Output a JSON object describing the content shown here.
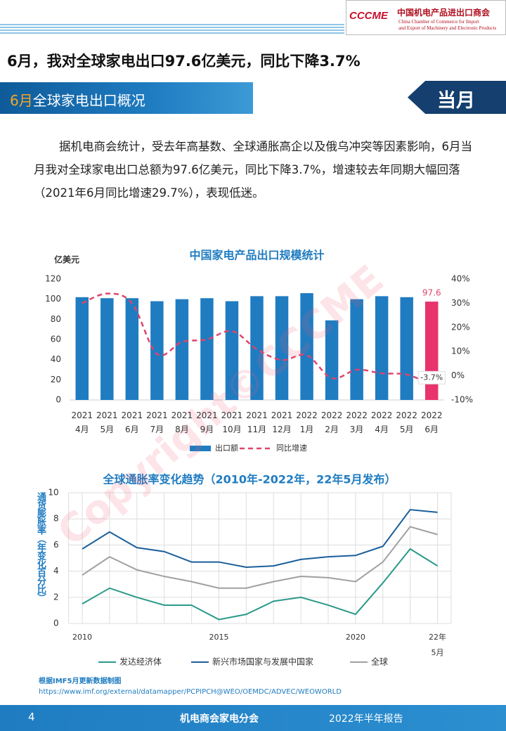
{
  "header": {
    "logo": "CCCME",
    "org_cn": "中国机电产品进出口商会",
    "org_en_1": "China Chamber of Commerce for Import",
    "org_en_2": "and Export of Machinery and Electronic Products"
  },
  "headline": "6月，我对全球家电出口97.6亿美元，同比下降3.7%",
  "section": {
    "title_accent": "6月",
    "title_rest": "全球家电出口概况",
    "tag": "当月"
  },
  "paragraph": "据机电商会统计，受去年高基数、全球通胀高企以及俄乌冲突等因素影响，6月当月我对全球家电出口总额为97.6亿美元，同比下降3.7%，增速较去年同期大幅回落（2021年6月同比增速29.7%），表现低迷。",
  "chart_data": [
    {
      "type": "bar",
      "title": "中国家电产品出口规模统计",
      "y_label": "亿美元",
      "categories": [
        "2021\n4月",
        "2021\n5月",
        "2021\n6月",
        "2021\n7月",
        "2021\n8月",
        "2021\n9月",
        "2021\n10月",
        "2021\n11月",
        "2021\n12月",
        "2022\n1月",
        "2022\n2月",
        "2022\n3月",
        "2022\n4月",
        "2022\n5月",
        "2022\n6月"
      ],
      "series": [
        {
          "name": "出口额",
          "type": "bar",
          "color": "#1f7cc1",
          "highlight": {
            "index": 14,
            "color": "#e8336c"
          },
          "values": [
            102,
            101,
            101,
            98,
            100,
            101,
            98,
            103,
            103,
            106,
            79,
            100,
            103,
            102,
            97.6
          ],
          "value_labels": [
            null,
            null,
            null,
            null,
            null,
            null,
            null,
            null,
            null,
            null,
            null,
            null,
            null,
            null,
            "97.6"
          ]
        },
        {
          "name": "同比增速",
          "type": "line",
          "axis": "y2",
          "color": "#e0446c",
          "values": [
            30,
            34,
            30,
            9,
            14,
            15,
            18.5,
            11,
            6.5,
            8.5,
            -1,
            2.5,
            1,
            0.5,
            -3.7
          ],
          "value_labels": [
            null,
            null,
            null,
            null,
            null,
            null,
            null,
            null,
            null,
            null,
            null,
            null,
            null,
            null,
            "-3.7%"
          ]
        }
      ],
      "ylim": [
        0,
        120
      ],
      "yticks": [
        0,
        20,
        40,
        60,
        80,
        100,
        120
      ],
      "y2lim": [
        -10,
        40
      ],
      "y2ticks": [
        {
          "value": -10,
          "label": "-10%"
        },
        {
          "value": 0,
          "label": "0%"
        },
        {
          "value": 10,
          "label": "10%"
        },
        {
          "value": 20,
          "label": "20%"
        },
        {
          "value": 30,
          "label": "30%"
        },
        {
          "value": 40,
          "label": "40%"
        }
      ]
    },
    {
      "type": "line",
      "title": "全球通胀率变化趋势（2010年-2022年，22年5月发布）",
      "y_label": "通货膨胀率（年变化百分比）",
      "x": [
        2010,
        2011,
        2012,
        2013,
        2014,
        2015,
        2016,
        2017,
        2018,
        2019,
        2020,
        2021,
        2022,
        2023
      ],
      "series": [
        {
          "name": "发达经济体",
          "color": "#2a9a8a",
          "values": [
            1.5,
            2.7,
            2.0,
            1.4,
            1.4,
            0.3,
            0.7,
            1.7,
            2.0,
            1.4,
            0.7,
            3.1,
            5.7,
            4.4
          ]
        },
        {
          "name": "新兴市场国家与发展中国家",
          "color": "#1a5f9a",
          "values": [
            5.7,
            7.0,
            5.8,
            5.5,
            4.7,
            4.7,
            4.3,
            4.4,
            4.9,
            5.1,
            5.2,
            5.9,
            8.7,
            8.5
          ]
        },
        {
          "name": "全球",
          "color": "#a0a0a0",
          "values": [
            3.7,
            5.1,
            4.1,
            3.6,
            3.2,
            2.7,
            2.7,
            3.2,
            3.6,
            3.5,
            3.2,
            4.7,
            7.4,
            6.8
          ]
        }
      ],
      "xlim": [
        2009.5,
        2023.5
      ],
      "xticks": [
        2010,
        2015,
        2020,
        {
          "value": 2023,
          "label": "22年\n5月"
        }
      ],
      "xgrid": [
        2010,
        2011,
        2012,
        2013,
        2014,
        2015,
        2016,
        2017,
        2018,
        2019,
        2020,
        2021,
        2022,
        2023
      ],
      "ylim": [
        0,
        10
      ],
      "yticks": [
        0,
        2,
        4,
        6,
        8,
        10
      ],
      "grid": true
    }
  ],
  "source": {
    "note": "根据IMF5月更新数据制图",
    "url": "https://www.imf.org/external/datamapper/PCPIPCH@WEO/OEMDC/ADVEC/WEOWORLD"
  },
  "watermark": "Copyright©CCCME",
  "footer": {
    "page": "4",
    "org": "机电商会家电分会",
    "report": "2022年半年报告"
  }
}
